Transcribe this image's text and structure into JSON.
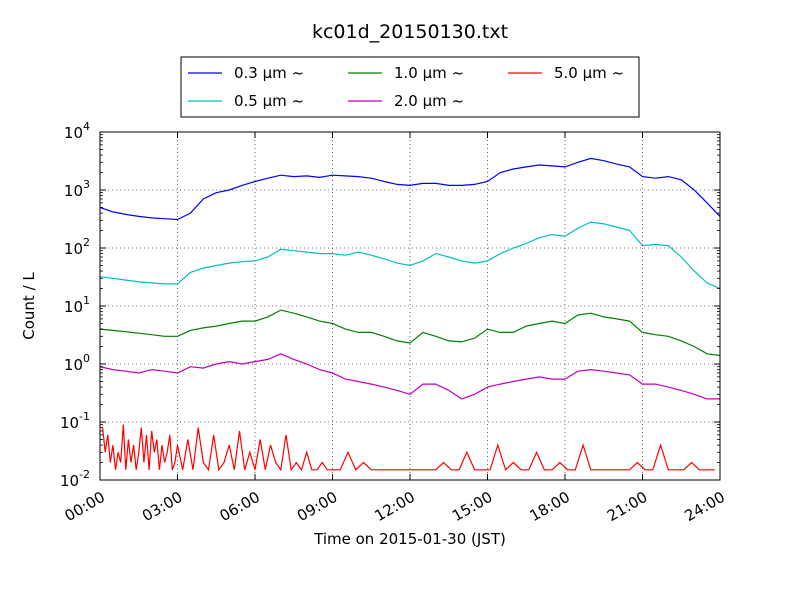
{
  "chart_data": {
    "type": "line",
    "title": "kc01d_20150130.txt",
    "xlabel": "Time on 2015-01-30 (JST)",
    "ylabel": "Count / L",
    "y_scale": "log",
    "ylim": [
      0.01,
      10000
    ],
    "xlim_hours": [
      0,
      24
    ],
    "grid": true,
    "legend_position": "top-center",
    "x_ticks": [
      {
        "hour": 0,
        "label": "00:00"
      },
      {
        "hour": 3,
        "label": "03:00"
      },
      {
        "hour": 6,
        "label": "06:00"
      },
      {
        "hour": 9,
        "label": "09:00"
      },
      {
        "hour": 12,
        "label": "12:00"
      },
      {
        "hour": 15,
        "label": "15:00"
      },
      {
        "hour": 18,
        "label": "18:00"
      },
      {
        "hour": 21,
        "label": "21:00"
      },
      {
        "hour": 24,
        "label": "24:00"
      }
    ],
    "y_ticks": [
      {
        "value": 0.01,
        "base": "10",
        "exp": "-2"
      },
      {
        "value": 0.1,
        "base": "10",
        "exp": "-1"
      },
      {
        "value": 1,
        "base": "10",
        "exp": "0"
      },
      {
        "value": 10,
        "base": "10",
        "exp": "1"
      },
      {
        "value": 100,
        "base": "10",
        "exp": "2"
      },
      {
        "value": 1000,
        "base": "10",
        "exp": "3"
      },
      {
        "value": 10000,
        "base": "10",
        "exp": "4"
      }
    ],
    "series": [
      {
        "name": "0.3 μm ~",
        "color": "#0000ff",
        "hours": [
          0,
          0.5,
          1,
          1.5,
          2,
          2.5,
          3,
          3.5,
          4,
          4.5,
          5,
          5.5,
          6,
          6.5,
          7,
          7.5,
          8,
          8.5,
          9,
          9.5,
          10,
          10.5,
          11,
          11.5,
          12,
          12.5,
          13,
          13.5,
          14,
          14.5,
          15,
          15.5,
          16,
          16.5,
          17,
          17.5,
          18,
          18.5,
          19,
          19.5,
          20,
          20.5,
          21,
          21.5,
          22,
          22.5,
          23,
          23.5,
          24
        ],
        "values": [
          500,
          420,
          380,
          350,
          330,
          320,
          310,
          400,
          700,
          900,
          1000,
          1200,
          1400,
          1600,
          1800,
          1700,
          1750,
          1650,
          1800,
          1750,
          1700,
          1600,
          1400,
          1250,
          1200,
          1300,
          1300,
          1200,
          1200,
          1250,
          1400,
          2000,
          2300,
          2500,
          2700,
          2600,
          2500,
          3000,
          3500,
          3200,
          2800,
          2500,
          1700,
          1600,
          1700,
          1500,
          1000,
          600,
          350
        ]
      },
      {
        "name": "0.5 μm ~",
        "color": "#00bfbf",
        "hours": [
          0,
          0.5,
          1,
          1.5,
          2,
          2.5,
          3,
          3.5,
          4,
          4.5,
          5,
          5.5,
          6,
          6.5,
          7,
          7.5,
          8,
          8.5,
          9,
          9.5,
          10,
          10.5,
          11,
          11.5,
          12,
          12.5,
          13,
          13.5,
          14,
          14.5,
          15,
          15.5,
          16,
          16.5,
          17,
          17.5,
          18,
          18.5,
          19,
          19.5,
          20,
          20.5,
          21,
          21.5,
          22,
          22.5,
          23,
          23.5,
          24
        ],
        "values": [
          32,
          30,
          28,
          26,
          25,
          24,
          24,
          38,
          45,
          50,
          55,
          58,
          60,
          70,
          95,
          90,
          85,
          80,
          80,
          75,
          85,
          75,
          65,
          55,
          50,
          60,
          80,
          70,
          60,
          55,
          60,
          80,
          100,
          120,
          150,
          170,
          160,
          220,
          280,
          260,
          230,
          200,
          110,
          115,
          110,
          70,
          40,
          25,
          20
        ]
      },
      {
        "name": "1.0 μm ~",
        "color": "#008000",
        "hours": [
          0,
          0.5,
          1,
          1.5,
          2,
          2.5,
          3,
          3.5,
          4,
          4.5,
          5,
          5.5,
          6,
          6.5,
          7,
          7.5,
          8,
          8.5,
          9,
          9.5,
          10,
          10.5,
          11,
          11.5,
          12,
          12.5,
          13,
          13.5,
          14,
          14.5,
          15,
          15.5,
          16,
          16.5,
          17,
          17.5,
          18,
          18.5,
          19,
          19.5,
          20,
          20.5,
          21,
          21.5,
          22,
          22.5,
          23,
          23.5,
          24
        ],
        "values": [
          4,
          3.8,
          3.6,
          3.4,
          3.2,
          3.0,
          3.0,
          3.8,
          4.2,
          4.5,
          5.0,
          5.5,
          5.5,
          6.5,
          8.5,
          7.5,
          6.5,
          5.5,
          5.0,
          4.0,
          3.5,
          3.5,
          3.0,
          2.5,
          2.3,
          3.5,
          3.0,
          2.5,
          2.4,
          2.8,
          4.0,
          3.5,
          3.5,
          4.5,
          5.0,
          5.5,
          5.0,
          7.0,
          7.5,
          6.5,
          6.0,
          5.5,
          3.5,
          3.2,
          3.0,
          2.5,
          2.0,
          1.5,
          1.4
        ]
      },
      {
        "name": "2.0 μm ~",
        "color": "#bf00bf",
        "hours": [
          0,
          0.5,
          1,
          1.5,
          2,
          2.5,
          3,
          3.5,
          4,
          4.5,
          5,
          5.5,
          6,
          6.5,
          7,
          7.5,
          8,
          8.5,
          9,
          9.5,
          10,
          10.5,
          11,
          11.5,
          12,
          12.5,
          13,
          13.5,
          14,
          14.5,
          15,
          15.5,
          16,
          16.5,
          17,
          17.5,
          18,
          18.5,
          19,
          19.5,
          20,
          20.5,
          21,
          21.5,
          22,
          22.5,
          23,
          23.5,
          24
        ],
        "values": [
          0.9,
          0.8,
          0.75,
          0.7,
          0.8,
          0.75,
          0.7,
          0.9,
          0.85,
          1.0,
          1.1,
          1.0,
          1.1,
          1.2,
          1.5,
          1.2,
          1.0,
          0.8,
          0.7,
          0.55,
          0.5,
          0.45,
          0.4,
          0.35,
          0.3,
          0.45,
          0.45,
          0.35,
          0.25,
          0.3,
          0.4,
          0.45,
          0.5,
          0.55,
          0.6,
          0.55,
          0.55,
          0.75,
          0.8,
          0.75,
          0.7,
          0.65,
          0.45,
          0.45,
          0.4,
          0.35,
          0.3,
          0.25,
          0.25
        ]
      },
      {
        "name": "5.0 μm ~",
        "color": "#ff0000",
        "hours": [
          0.1,
          0.2,
          0.3,
          0.4,
          0.5,
          0.6,
          0.7,
          0.8,
          0.9,
          1.0,
          1.1,
          1.2,
          1.3,
          1.4,
          1.5,
          1.6,
          1.7,
          1.8,
          1.9,
          2.0,
          2.1,
          2.2,
          2.3,
          2.4,
          2.5,
          2.6,
          2.7,
          2.8,
          2.9,
          3.0,
          3.2,
          3.4,
          3.6,
          3.8,
          4.0,
          4.2,
          4.4,
          4.6,
          4.8,
          5.0,
          5.2,
          5.4,
          5.6,
          5.8,
          6.0,
          6.2,
          6.4,
          6.6,
          6.8,
          7.0,
          7.2,
          7.4,
          7.6,
          7.8,
          8.0,
          8.2,
          8.4,
          8.6,
          8.8,
          9.0,
          9.3,
          9.6,
          9.9,
          10.2,
          10.5,
          10.8,
          13.0,
          13.3,
          13.6,
          13.9,
          14.2,
          14.5,
          14.8,
          15.1,
          15.4,
          15.7,
          16.0,
          16.3,
          16.6,
          16.9,
          17.2,
          17.5,
          17.8,
          18.1,
          18.4,
          18.7,
          19.0,
          19.3,
          19.6,
          19.9,
          20.2,
          20.5,
          20.8,
          21.1,
          21.4,
          21.7,
          22.0,
          22.3,
          22.6,
          22.9,
          23.2,
          23.5,
          23.8
        ],
        "values": [
          0.08,
          0.03,
          0.06,
          0.02,
          0.04,
          0.015,
          0.03,
          0.02,
          0.09,
          0.015,
          0.05,
          0.02,
          0.04,
          0.015,
          0.03,
          0.08,
          0.02,
          0.06,
          0.015,
          0.07,
          0.03,
          0.05,
          0.015,
          0.04,
          0.02,
          0.03,
          0.06,
          0.015,
          0.02,
          0.04,
          0.015,
          0.05,
          0.015,
          0.08,
          0.02,
          0.015,
          0.06,
          0.015,
          0.02,
          0.04,
          0.015,
          0.07,
          0.015,
          0.03,
          0.015,
          0.05,
          0.015,
          0.04,
          0.02,
          0.015,
          0.06,
          0.015,
          0.02,
          0.015,
          0.03,
          0.015,
          0.015,
          0.02,
          0.015,
          0.015,
          0.015,
          0.03,
          0.015,
          0.02,
          0.015,
          0.015,
          0.015,
          0.02,
          0.015,
          0.015,
          0.03,
          0.015,
          0.015,
          0.015,
          0.04,
          0.015,
          0.02,
          0.015,
          0.015,
          0.03,
          0.015,
          0.015,
          0.02,
          0.015,
          0.015,
          0.04,
          0.015,
          0.015,
          0.015,
          0.015,
          0.015,
          0.015,
          0.02,
          0.015,
          0.015,
          0.04,
          0.015,
          0.015,
          0.015,
          0.02,
          0.015,
          0.015,
          0.015
        ]
      }
    ]
  }
}
